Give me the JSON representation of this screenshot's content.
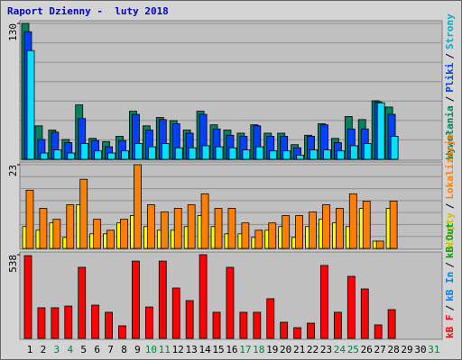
{
  "chart_data": [
    {
      "type": "bar",
      "title": "Raport Dzienny -  luty 2018",
      "ylim": [
        0,
        130
      ],
      "yticks": [
        130
      ],
      "legend_separator": "/",
      "series": [
        {
          "name": "Wywołania",
          "color": "#00805c",
          "label_color": "#00805c",
          "values": [
            130,
            32,
            28,
            19,
            52,
            20,
            17,
            22,
            46,
            32,
            40,
            37,
            28,
            46,
            33,
            28,
            25,
            33,
            25,
            25,
            14,
            23,
            34,
            20,
            41,
            38,
            56,
            50,
            null,
            null,
            null
          ]
        },
        {
          "name": "Pliki",
          "color": "#0040ff",
          "label_color": "#0040ff",
          "values": [
            122,
            19,
            26,
            16,
            39,
            18,
            12,
            18,
            43,
            28,
            38,
            34,
            25,
            43,
            29,
            23,
            22,
            32,
            22,
            22,
            11,
            22,
            33,
            16,
            29,
            29,
            55,
            43,
            null,
            null,
            null
          ]
        },
        {
          "name": "Strony",
          "color": "#00e0ff",
          "label_color": "#00b0c0",
          "values": [
            104,
            6,
            9,
            6,
            15,
            8,
            6,
            8,
            15,
            12,
            15,
            11,
            11,
            13,
            12,
            11,
            9,
            12,
            8,
            8,
            4,
            9,
            9,
            8,
            13,
            15,
            54,
            22,
            null,
            null,
            null
          ]
        }
      ]
    },
    {
      "type": "bar",
      "ylim": [
        0,
        23
      ],
      "yticks": [
        23
      ],
      "legend_separator": "/",
      "series": [
        {
          "name": "Wizyty",
          "color": "#ffff00",
          "label_color": "#d0c000",
          "values": [
            6,
            5,
            7,
            3,
            12,
            4,
            4,
            7,
            9,
            6,
            5,
            5,
            6,
            9,
            6,
            4,
            4,
            3,
            5,
            6,
            3,
            6,
            8,
            7,
            6,
            11,
            2,
            11,
            null,
            null,
            null
          ]
        },
        {
          "name": "Lokalizacje",
          "color": "#ff8000",
          "label_color": "#ff8000",
          "values": [
            16,
            11,
            8,
            12,
            19,
            8,
            5,
            8,
            23,
            12,
            10,
            11,
            12,
            15,
            11,
            11,
            7,
            5,
            7,
            9,
            9,
            10,
            12,
            11,
            15,
            13,
            2,
            13,
            null,
            null,
            null
          ]
        }
      ]
    },
    {
      "type": "bar",
      "ylim": [
        0,
        538
      ],
      "yticks": [
        538
      ],
      "legend_separator": "/",
      "categories": [
        "1",
        "2",
        "3",
        "4",
        "5",
        "6",
        "7",
        "8",
        "9",
        "10",
        "11",
        "12",
        "13",
        "14",
        "15",
        "16",
        "17",
        "18",
        "19",
        "20",
        "21",
        "22",
        "23",
        "24",
        "25",
        "26",
        "27",
        "28",
        "29",
        "30",
        "31"
      ],
      "category_colors": [
        "#000000",
        "#000000",
        "#008040",
        "#008040",
        "#000000",
        "#000000",
        "#000000",
        "#000000",
        "#000000",
        "#008040",
        "#008040",
        "#000000",
        "#000000",
        "#000000",
        "#000000",
        "#000000",
        "#008040",
        "#008040",
        "#000000",
        "#000000",
        "#000000",
        "#000000",
        "#000000",
        "#008040",
        "#008040",
        "#000000",
        "#000000",
        "#000000",
        "#000000",
        "#000000",
        "#008040"
      ],
      "series": [
        {
          "name": "kB F",
          "color": "#ff0000",
          "label_color": "#ff0000",
          "values": [
            532,
            197,
            197,
            208,
            457,
            214,
            168,
            81,
            497,
            202,
            497,
            324,
            243,
            538,
            168,
            457,
            168,
            168,
            255,
            104,
            69,
            98,
            469,
            168,
            399,
            318,
            87,
            185,
            null,
            null,
            null
          ]
        },
        {
          "name": "kB In",
          "color": "#0080ff",
          "label_color": "#0080ff",
          "values": [
            0,
            0,
            0,
            0,
            0,
            0,
            0,
            0,
            0,
            0,
            0,
            0,
            0,
            0,
            0,
            0,
            0,
            0,
            0,
            0,
            0,
            0,
            0,
            0,
            0,
            0,
            0,
            0,
            null,
            null,
            null
          ]
        },
        {
          "name": "kB Out",
          "color": "#00c000",
          "label_color": "#00a000",
          "values": [
            0,
            0,
            0,
            0,
            0,
            0,
            0,
            0,
            0,
            0,
            0,
            0,
            0,
            0,
            0,
            0,
            0,
            0,
            0,
            0,
            0,
            0,
            0,
            0,
            0,
            0,
            0,
            0,
            null,
            null,
            null
          ]
        }
      ]
    }
  ]
}
